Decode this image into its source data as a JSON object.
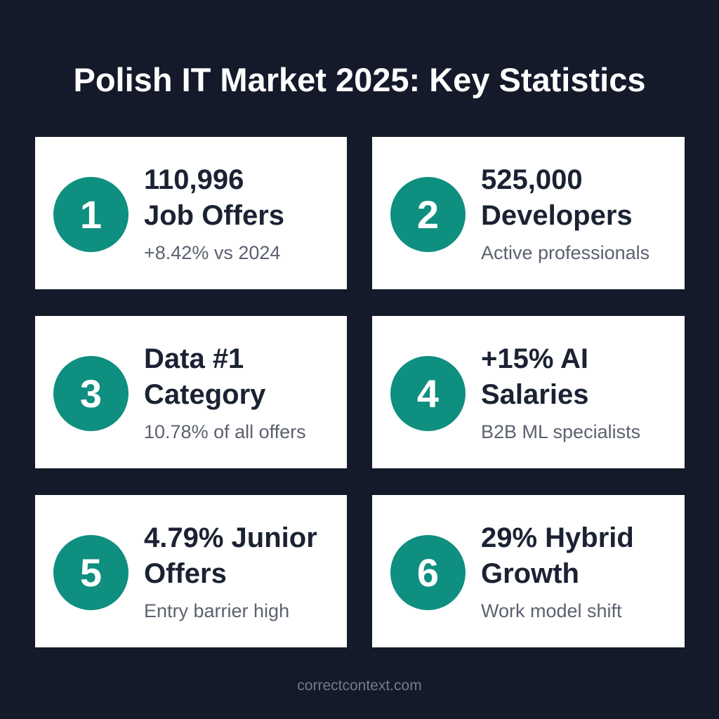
{
  "title": "Polish IT Market 2025: Key Statistics",
  "cards": [
    {
      "number": "1",
      "line1": "110,996",
      "line2": "Job Offers",
      "sub": "+8.42% vs 2024"
    },
    {
      "number": "2",
      "line1": "525,000",
      "line2": "Developers",
      "sub": "Active professionals"
    },
    {
      "number": "3",
      "line1": "Data #1",
      "line2": "Category",
      "sub": "10.78% of all offers"
    },
    {
      "number": "4",
      "line1": "+15% AI",
      "line2": "Salaries",
      "sub": "B2B ML specialists"
    },
    {
      "number": "5",
      "line1": "4.79% Junior",
      "line2": "Offers",
      "sub": "Entry barrier high"
    },
    {
      "number": "6",
      "line1": "29% Hybrid",
      "line2": "Growth",
      "sub": "Work model shift"
    }
  ],
  "footer": "correctcontext.com",
  "colors": {
    "background": "#141a2a",
    "card": "#ffffff",
    "accent": "#0f8f80",
    "headline_text": "#1b2233",
    "sub_text": "#5c6170",
    "footer_text": "#747a8a"
  }
}
